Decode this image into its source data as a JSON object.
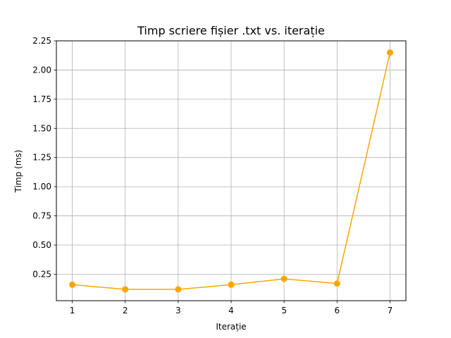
{
  "chart_data": {
    "type": "line",
    "title": "Timp scriere fișier .txt vs. iterație",
    "xlabel": "Iterație",
    "ylabel": "Timp (ms)",
    "x": [
      1,
      2,
      3,
      4,
      5,
      6,
      7
    ],
    "series": [
      {
        "values": [
          0.16,
          0.12,
          0.12,
          0.16,
          0.21,
          0.17,
          2.15
        ],
        "color": "#ffa500",
        "marker": "circle"
      }
    ],
    "xticks": [
      "1",
      "2",
      "3",
      "4",
      "5",
      "6",
      "7"
    ],
    "yticks": [
      "0.25",
      "0.50",
      "0.75",
      "1.00",
      "1.25",
      "1.50",
      "1.75",
      "2.00",
      "2.25"
    ],
    "xlim": [
      0.7,
      7.3
    ],
    "ylim": [
      0.023,
      2.25
    ],
    "grid": true,
    "grid_color": "#b0b0b0"
  }
}
